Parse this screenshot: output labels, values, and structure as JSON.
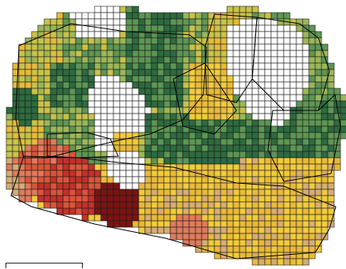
{
  "map": {
    "type": "grid-yield-map",
    "color_classes": [
      {
        "id": "white",
        "color": "#ffffff"
      },
      {
        "id": "dark-green",
        "color": "#2d6b3f"
      },
      {
        "id": "mid-green",
        "color": "#5e9653"
      },
      {
        "id": "light-green",
        "color": "#9bb758"
      },
      {
        "id": "yellow-green",
        "color": "#c9c24a"
      },
      {
        "id": "yellow",
        "color": "#f0cb3c"
      },
      {
        "id": "gold",
        "color": "#e8b93a"
      },
      {
        "id": "tan",
        "color": "#d6ac74"
      },
      {
        "id": "salmon",
        "color": "#e07a5c"
      },
      {
        "id": "orange-red",
        "color": "#d9553a"
      },
      {
        "id": "red",
        "color": "#c2312a"
      },
      {
        "id": "dark-red",
        "color": "#7a1414"
      }
    ],
    "grid_line_color": "#1a1a1a",
    "boundary_color": "#000000"
  }
}
